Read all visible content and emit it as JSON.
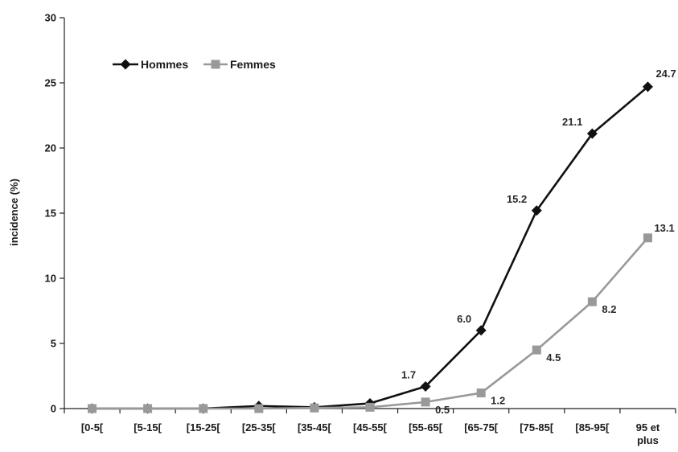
{
  "chart_data": {
    "type": "line",
    "title": "",
    "xlabel": "",
    "ylabel": "incidence (%)",
    "ylim": [
      0,
      30
    ],
    "yticks": [
      0,
      5,
      10,
      15,
      20,
      25,
      30
    ],
    "grid": false,
    "legend_position": "top-left",
    "categories": [
      [
        "[0-5["
      ],
      [
        "[5-15["
      ],
      [
        "[15-25["
      ],
      [
        "[25-35["
      ],
      [
        "[35-45["
      ],
      [
        "[45-55["
      ],
      [
        "[55-65["
      ],
      [
        "[65-75["
      ],
      [
        "[75-85["
      ],
      [
        "[85-95["
      ],
      [
        "95 et",
        "plus"
      ]
    ],
    "series": [
      {
        "name": "Hommes",
        "color": "#111111",
        "marker": "diamond",
        "values": [
          0,
          0,
          0,
          0.2,
          0.1,
          0.4,
          1.7,
          6.0,
          15.2,
          21.1,
          24.7
        ],
        "labels": [
          "",
          "",
          "",
          "",
          "",
          "",
          "1.7",
          "6.0",
          "15.2",
          "21.1",
          "24.7"
        ]
      },
      {
        "name": "Femmes",
        "color": "#999999",
        "marker": "square",
        "values": [
          0,
          0,
          0,
          0,
          0.05,
          0.1,
          0.5,
          1.2,
          4.5,
          8.2,
          13.1
        ],
        "labels": [
          "",
          "",
          "",
          "",
          "",
          "",
          "0.5",
          "1.2",
          "4.5",
          "8.2",
          "13.1"
        ]
      }
    ]
  }
}
